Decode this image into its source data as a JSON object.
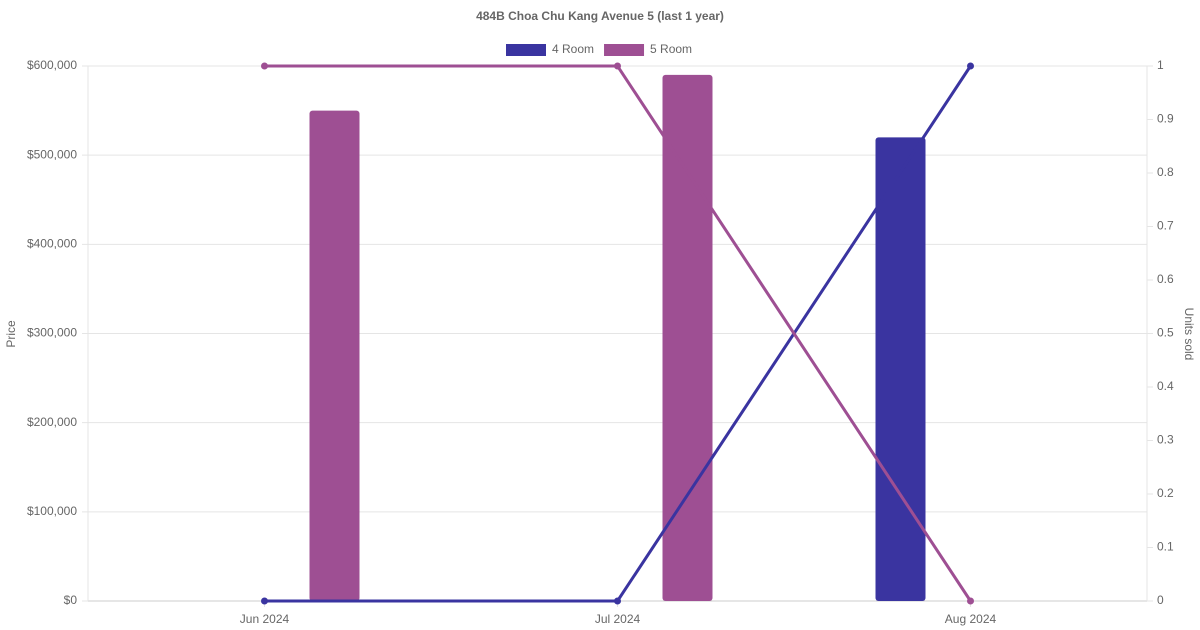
{
  "chart_data": {
    "type": "combo",
    "title": "484B Choa Chu Kang Avenue 5 (last 1 year)",
    "categories": [
      "Jun 2024",
      "Jul 2024",
      "Aug 2024"
    ],
    "series": [
      {
        "name": "4 Room",
        "color": "#3a34a0",
        "values": [
          null,
          null,
          520000
        ],
        "units_sold": [
          0,
          0,
          1
        ]
      },
      {
        "name": "5 Room",
        "color": "#9e4f93",
        "values": [
          550000,
          590000,
          null
        ],
        "units_sold": [
          1,
          1,
          0
        ]
      }
    ],
    "y_label": "Price",
    "y2_label": "Units sold",
    "ylim": [
      0,
      600000
    ],
    "yticks": [
      {
        "value": 0,
        "label": "$0"
      },
      {
        "value": 100000,
        "label": "$100,000"
      },
      {
        "value": 200000,
        "label": "$200,000"
      },
      {
        "value": 300000,
        "label": "$300,000"
      },
      {
        "value": 400000,
        "label": "$400,000"
      },
      {
        "value": 500000,
        "label": "$500,000"
      },
      {
        "value": 600000,
        "label": "$600,000"
      }
    ],
    "y2lim": [
      0,
      1
    ],
    "y2ticks": [
      0,
      0.1,
      0.2,
      0.3,
      0.4,
      0.5,
      0.6,
      0.7,
      0.8,
      0.9,
      1
    ],
    "grid": true
  }
}
